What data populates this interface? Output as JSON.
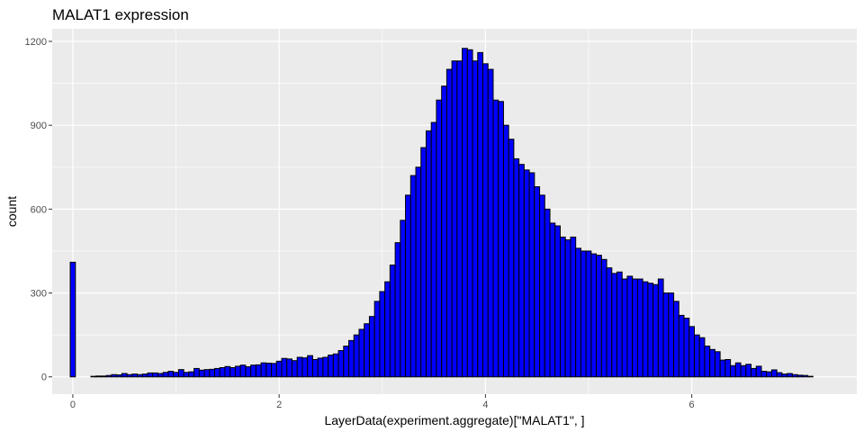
{
  "chart_data": {
    "type": "bar",
    "title": "MALAT1 expression",
    "xlabel": "LayerData(experiment.aggregate)[\"MALAT1\", ]",
    "ylabel": "count",
    "xlim": [
      -0.2,
      7.6
    ],
    "ylim": [
      -62,
      1245
    ],
    "x_ticks": [
      0,
      2,
      4,
      6
    ],
    "y_ticks": [
      0,
      300,
      600,
      900,
      1200
    ],
    "bin_width": 0.05,
    "bins_start": -0.025,
    "grid": true,
    "colors": {
      "fill": "#0000ff",
      "outline": "#000000",
      "panel": "#ebebeb",
      "grid": "#ffffff"
    },
    "counts": [
      410,
      0,
      0,
      0,
      2,
      3,
      3,
      5,
      8,
      7,
      12,
      8,
      10,
      8,
      10,
      14,
      14,
      12,
      16,
      20,
      16,
      26,
      16,
      18,
      30,
      24,
      26,
      27,
      30,
      33,
      37,
      33,
      38,
      42,
      36,
      42,
      43,
      50,
      49,
      48,
      56,
      66,
      64,
      58,
      70,
      68,
      76,
      62,
      67,
      70,
      78,
      82,
      94,
      110,
      130,
      150,
      170,
      190,
      216,
      270,
      305,
      340,
      400,
      480,
      560,
      650,
      720,
      750,
      820,
      880,
      910,
      990,
      1040,
      1100,
      1130,
      1130,
      1175,
      1170,
      1130,
      1160,
      1120,
      1100,
      990,
      985,
      900,
      850,
      780,
      760,
      740,
      730,
      680,
      650,
      600,
      550,
      540,
      500,
      490,
      500,
      460,
      450,
      450,
      440,
      435,
      420,
      390,
      370,
      375,
      350,
      360,
      350,
      350,
      340,
      335,
      330,
      350,
      300,
      300,
      270,
      220,
      210,
      180,
      150,
      140,
      110,
      98,
      90,
      60,
      62,
      40,
      50,
      40,
      45,
      30,
      38,
      20,
      18,
      25,
      15,
      10,
      12,
      8,
      6,
      5,
      2
    ]
  }
}
